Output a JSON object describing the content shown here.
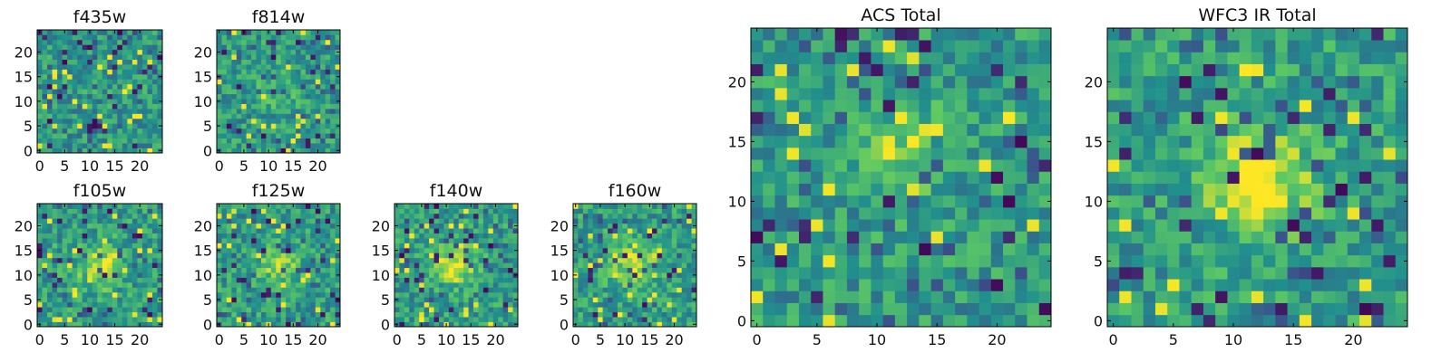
{
  "chart_data": [
    {
      "type": "heatmap",
      "title": "f435w",
      "x_ticks": [
        0,
        5,
        10,
        15,
        20
      ],
      "y_ticks": [
        0,
        5,
        10,
        15,
        20
      ],
      "xlim": [
        0,
        25
      ],
      "ylim": [
        0,
        25
      ],
      "grid": 25,
      "source_clump": {
        "x": 12,
        "y": 12,
        "strength": 0.0
      }
    },
    {
      "type": "heatmap",
      "title": "f814w",
      "x_ticks": [
        0,
        5,
        10,
        15,
        20
      ],
      "y_ticks": [
        0,
        5,
        10,
        15,
        20
      ],
      "xlim": [
        0,
        25
      ],
      "ylim": [
        0,
        25
      ],
      "grid": 25,
      "source_clump": {
        "x": 12,
        "y": 13,
        "strength": 0.3
      }
    },
    {
      "type": "heatmap",
      "title": "f105w",
      "x_ticks": [
        0,
        5,
        10,
        15,
        20
      ],
      "y_ticks": [
        0,
        5,
        10,
        15,
        20
      ],
      "xlim": [
        0,
        25
      ],
      "ylim": [
        0,
        25
      ],
      "grid": 25,
      "source_clump": {
        "x": 12,
        "y": 12,
        "strength": 0.8
      }
    },
    {
      "type": "heatmap",
      "title": "f125w",
      "x_ticks": [
        0,
        5,
        10,
        15,
        20
      ],
      "y_ticks": [
        0,
        5,
        10,
        15,
        20
      ],
      "xlim": [
        0,
        25
      ],
      "ylim": [
        0,
        25
      ],
      "grid": 25,
      "source_clump": {
        "x": 12,
        "y": 12,
        "strength": 0.6
      }
    },
    {
      "type": "heatmap",
      "title": "f140w",
      "x_ticks": [
        0,
        5,
        10,
        15,
        20
      ],
      "y_ticks": [
        0,
        5,
        10,
        15,
        20
      ],
      "xlim": [
        0,
        25
      ],
      "ylim": [
        0,
        25
      ],
      "grid": 25,
      "source_clump": {
        "x": 12,
        "y": 12,
        "strength": 0.8
      }
    },
    {
      "type": "heatmap",
      "title": "f160w",
      "x_ticks": [
        0,
        5,
        10,
        15,
        20
      ],
      "y_ticks": [
        0,
        5,
        10,
        15,
        20
      ],
      "xlim": [
        0,
        25
      ],
      "ylim": [
        0,
        25
      ],
      "grid": 25,
      "source_clump": {
        "x": 12,
        "y": 12,
        "strength": 0.8
      }
    },
    {
      "type": "heatmap",
      "title": "ACS Total",
      "x_ticks": [
        0,
        5,
        10,
        15,
        20
      ],
      "y_ticks": [
        0,
        5,
        10,
        15,
        20
      ],
      "xlim": [
        0,
        25
      ],
      "ylim": [
        0,
        25
      ],
      "grid": 25,
      "source_clump": {
        "x": 12,
        "y": 14,
        "strength": 0.4
      }
    },
    {
      "type": "heatmap",
      "title": "WFC3 IR Total",
      "x_ticks": [
        0,
        5,
        10,
        15,
        20
      ],
      "y_ticks": [
        0,
        5,
        10,
        15,
        20
      ],
      "xlim": [
        0,
        25
      ],
      "ylim": [
        0,
        25
      ],
      "grid": 25,
      "source_clump": {
        "x": 12,
        "y": 12,
        "strength": 1.0
      }
    }
  ],
  "colormap": [
    "#440154",
    "#3b528b",
    "#21908d",
    "#5dc863",
    "#fde725"
  ]
}
